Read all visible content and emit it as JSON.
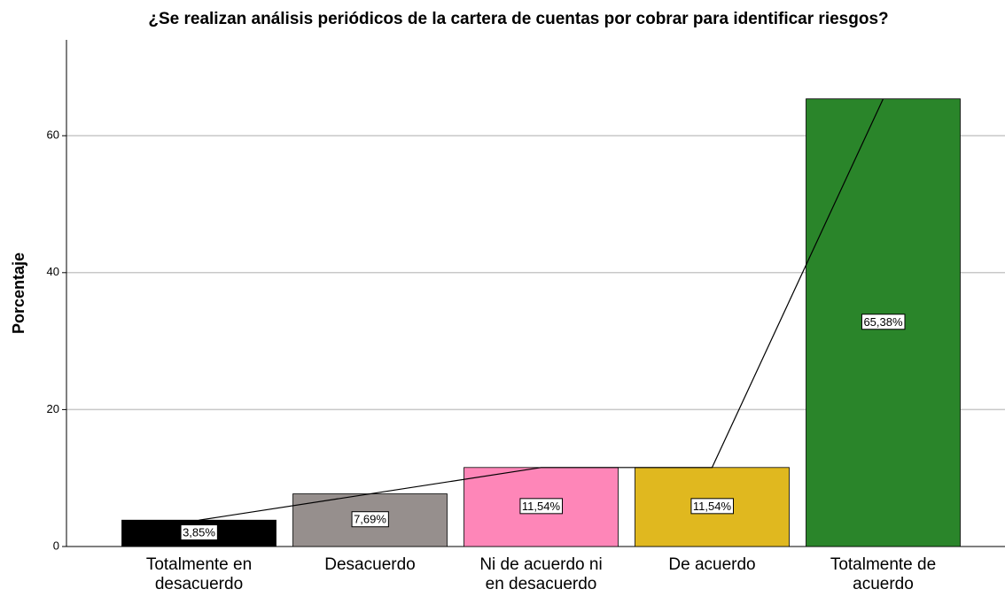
{
  "chart_data": {
    "type": "bar",
    "title": "¿Se realizan análisis periódicos de la cartera de cuentas por cobrar para identificar riesgos?",
    "y_label": "Porcentaje",
    "categories": [
      "Totalmente en desacuerdo",
      "Desacuerdo",
      "Ni de acuerdo ni en desacuerdo",
      "De acuerdo",
      "Totalmente de acuerdo"
    ],
    "values": [
      3.85,
      7.69,
      11.54,
      11.54,
      65.38
    ],
    "value_labels": [
      "3,85%",
      "7,69%",
      "11,54%",
      "11,54%",
      "65,38%"
    ],
    "colors": [
      "#000000",
      "#968f8d",
      "#fe86b8",
      "#e0b81f",
      "#2a852a"
    ],
    "ylim": [
      0,
      74
    ],
    "yticks": [
      0,
      20,
      40,
      60
    ],
    "grid": true,
    "connect_line": true
  }
}
